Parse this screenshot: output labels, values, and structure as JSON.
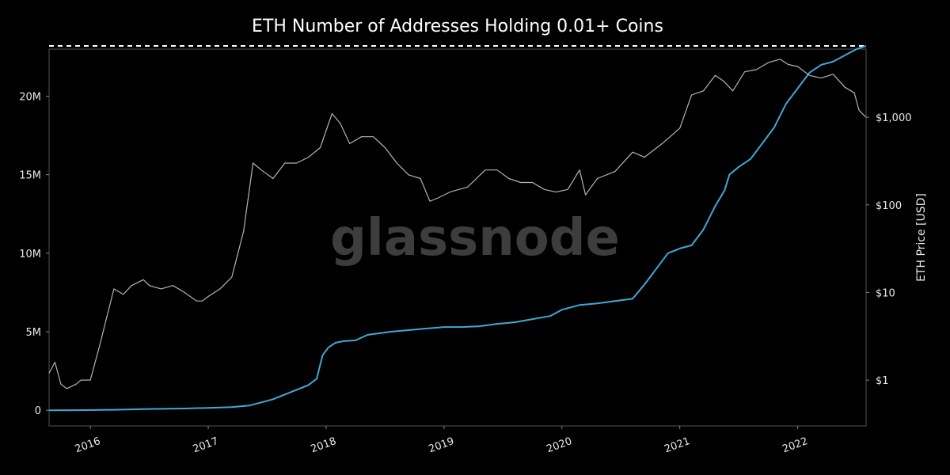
{
  "chart_data": {
    "type": "line",
    "title": "ETH Number of Addresses Holding 0.01+ Coins",
    "watermark": "glassnode",
    "x_tick_labels": [
      "2016",
      "2017",
      "2018",
      "2019",
      "2020",
      "2021",
      "2022"
    ],
    "x_tick_values": [
      2016.0,
      2017.0,
      2018.0,
      2019.0,
      2020.0,
      2021.0,
      2022.0
    ],
    "xlim": [
      2015.65,
      2022.58
    ],
    "y_left": {
      "label": "",
      "tick_labels": [
        "0",
        "5M",
        "10M",
        "15M",
        "20M"
      ],
      "tick_values": [
        0,
        5000000,
        10000000,
        15000000,
        20000000
      ],
      "ylim": [
        -1000000,
        23000000
      ]
    },
    "y_right": {
      "label": "ETH Price [USD]",
      "scale": "log",
      "tick_labels": [
        "$1",
        "$10",
        "$100",
        "$1,000"
      ],
      "tick_values": [
        1,
        10,
        100,
        1000
      ],
      "ylim": [
        0.3,
        6000
      ]
    },
    "ath_line": {
      "style": "dashed",
      "color": "#ffffff",
      "value": 23200000
    },
    "series": [
      {
        "axis": "left",
        "color": "#3fa9d8",
        "x": [
          2015.65,
          2015.9,
          2016.2,
          2016.5,
          2016.8,
          2017.0,
          2017.2,
          2017.35,
          2017.45,
          2017.55,
          2017.65,
          2017.75,
          2017.85,
          2017.92,
          2017.97,
          2018.02,
          2018.08,
          2018.15,
          2018.25,
          2018.35,
          2018.45,
          2018.55,
          2018.7,
          2018.85,
          2019.0,
          2019.15,
          2019.3,
          2019.45,
          2019.6,
          2019.75,
          2019.9,
          2020.0,
          2020.15,
          2020.3,
          2020.4,
          2020.5,
          2020.6,
          2020.7,
          2020.8,
          2020.9,
          2021.0,
          2021.1,
          2021.2,
          2021.3,
          2021.38,
          2021.42,
          2021.5,
          2021.6,
          2021.7,
          2021.8,
          2021.9,
          2022.0,
          2022.1,
          2022.2,
          2022.3,
          2022.4,
          2022.5,
          2022.58
        ],
        "values": [
          0,
          5000,
          30000,
          80000,
          110000,
          150000,
          200000,
          300000,
          500000,
          700000,
          1000000,
          1300000,
          1600000,
          2000000,
          3500000,
          4000000,
          4300000,
          4400000,
          4450000,
          4800000,
          4900000,
          5000000,
          5100000,
          5200000,
          5300000,
          5300000,
          5350000,
          5500000,
          5600000,
          5800000,
          6000000,
          6400000,
          6700000,
          6800000,
          6900000,
          7000000,
          7100000,
          8000000,
          9000000,
          10000000,
          10300000,
          10500000,
          11500000,
          13000000,
          14000000,
          15000000,
          15500000,
          16000000,
          17000000,
          18000000,
          19500000,
          20500000,
          21500000,
          22000000,
          22200000,
          22600000,
          23000000,
          23200000
        ]
      },
      {
        "axis": "right",
        "color": "#b4b4b4",
        "x": [
          2015.65,
          2015.7,
          2015.75,
          2015.8,
          2015.88,
          2015.92,
          2016.0,
          2016.08,
          2016.15,
          2016.2,
          2016.28,
          2016.35,
          2016.45,
          2016.5,
          2016.6,
          2016.7,
          2016.8,
          2016.9,
          2016.95,
          2017.0,
          2017.1,
          2017.2,
          2017.3,
          2017.38,
          2017.45,
          2017.55,
          2017.65,
          2017.75,
          2017.85,
          2017.95,
          2018.05,
          2018.12,
          2018.2,
          2018.3,
          2018.4,
          2018.5,
          2018.6,
          2018.7,
          2018.8,
          2018.88,
          2018.95,
          2019.05,
          2019.2,
          2019.35,
          2019.45,
          2019.55,
          2019.65,
          2019.75,
          2019.85,
          2019.95,
          2020.05,
          2020.15,
          2020.2,
          2020.3,
          2020.45,
          2020.6,
          2020.7,
          2020.85,
          2021.0,
          2021.1,
          2021.2,
          2021.3,
          2021.37,
          2021.45,
          2021.55,
          2021.65,
          2021.75,
          2021.85,
          2021.92,
          2022.0,
          2022.1,
          2022.2,
          2022.3,
          2022.4,
          2022.48,
          2022.52,
          2022.58
        ],
        "values": [
          1.2,
          1.6,
          0.9,
          0.8,
          0.9,
          1.0,
          1.0,
          2.5,
          6.0,
          11.0,
          9.5,
          12.0,
          14.0,
          12.0,
          11.0,
          12.0,
          10.0,
          8.0,
          8.0,
          9.0,
          11.0,
          15.0,
          50.0,
          300.0,
          250.0,
          200.0,
          300.0,
          300.0,
          350.0,
          450.0,
          1100.0,
          850.0,
          500.0,
          600.0,
          600.0,
          450.0,
          300.0,
          220.0,
          200.0,
          110.0,
          120.0,
          140.0,
          160.0,
          250.0,
          250.0,
          200.0,
          180.0,
          180.0,
          150.0,
          140.0,
          150.0,
          250.0,
          130.0,
          200.0,
          240.0,
          400.0,
          350.0,
          500.0,
          750.0,
          1800.0,
          2000.0,
          3000.0,
          2600.0,
          2000.0,
          3300.0,
          3500.0,
          4200.0,
          4600.0,
          4000.0,
          3800.0,
          3000.0,
          2800.0,
          3100.0,
          2200.0,
          1900.0,
          1200.0,
          1000.0
        ]
      }
    ]
  }
}
